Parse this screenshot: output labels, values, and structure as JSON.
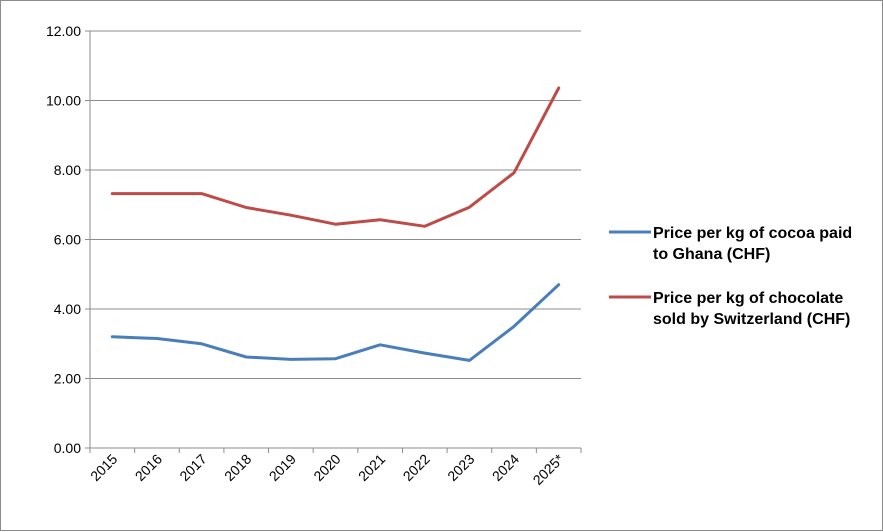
{
  "chart_data": {
    "type": "line",
    "title": "",
    "xlabel": "",
    "ylabel": "",
    "categories": [
      "2015",
      "2016",
      "2017",
      "2018",
      "2019",
      "2020",
      "2021",
      "2022",
      "2023",
      "2024",
      "2025*"
    ],
    "ylim": [
      0,
      12
    ],
    "yticks": [
      "0.00",
      "2.00",
      "4.00",
      "6.00",
      "8.00",
      "10.00",
      "12.00"
    ],
    "grid": true,
    "legend_position": "right",
    "series": [
      {
        "name": "Price per kg of cocoa paid to Ghana (CHF)",
        "legend_lines": [
          "Price per kg of cocoa paid",
          "to Ghana (CHF)"
        ],
        "color": "#4a7ebb",
        "values": [
          3.2,
          3.15,
          3.0,
          2.62,
          2.55,
          2.57,
          2.97,
          2.73,
          2.52,
          3.5,
          4.7
        ]
      },
      {
        "name": "Price per kg of chocolate sold by Switzerland (CHF)",
        "legend_lines": [
          "Price per kg of chocolate",
          "sold by Switzerland (CHF)"
        ],
        "color": "#be4b48",
        "values": [
          7.32,
          7.32,
          7.32,
          6.92,
          6.7,
          6.44,
          6.57,
          6.38,
          6.93,
          7.92,
          10.36
        ]
      }
    ]
  }
}
